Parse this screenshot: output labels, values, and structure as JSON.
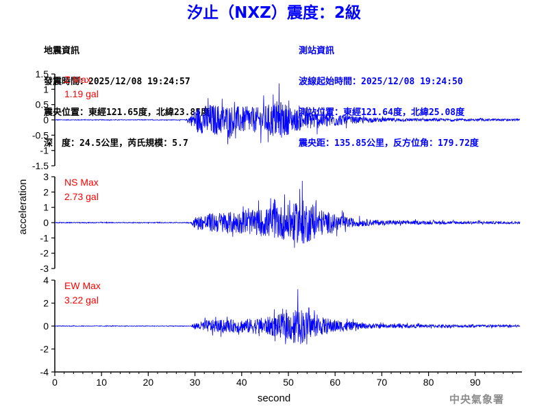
{
  "header": {
    "title": "汐止（NXZ）震度：2級"
  },
  "earthquake_info": {
    "heading": "地震資訊",
    "origin_time": "發震時間：2025/12/08 19:24:57",
    "epicenter": "震央位置：東經121.65度，北緯23.85度",
    "depth_magnitude": "深　度：24.5公里，芮氏規模：5.7"
  },
  "station_info": {
    "heading": "測站資訊",
    "wave_start_time": "波線起始時間：2025/12/08 19:24:50",
    "station_location": "測站位置：東經121.64度，北緯25.08度",
    "distance_azimuth": "震央距：135.85公里，反方位角：179.72度"
  },
  "footer": {
    "agency": "中央氣象署"
  },
  "colors": {
    "title": "#0000ff",
    "station_info": "#0000ff",
    "trace": "#0000ff",
    "max_label": "#ff0000",
    "axes": "#000000"
  },
  "chart_data": {
    "type": "line",
    "xlabel": "second",
    "ylabel": "acceleration",
    "xlim": [
      0,
      100
    ],
    "xticks": [
      0,
      10,
      20,
      30,
      40,
      50,
      60,
      70,
      80,
      90
    ],
    "grid": false,
    "panels": [
      {
        "component": "Z",
        "max_label": "Z Max",
        "max_value": "1.19 gal",
        "peak": 1.19,
        "ylim": [
          -1.5,
          1.5
        ],
        "yticks": [
          -1.5,
          -1,
          -0.5,
          0,
          0.5,
          1,
          1.5
        ],
        "ytick_labels": [
          "-1.5",
          "-1",
          "-0.5",
          "0",
          "0.5",
          "1",
          "1.5"
        ],
        "signal_envelope": [
          [
            0,
            0.02
          ],
          [
            28,
            0.02
          ],
          [
            29.5,
            0.4
          ],
          [
            30,
            0.7
          ],
          [
            33,
            0.95
          ],
          [
            36,
            0.9
          ],
          [
            40,
            0.8
          ],
          [
            44,
            0.75
          ],
          [
            48,
            1.19
          ],
          [
            51,
            0.7
          ],
          [
            55,
            0.55
          ],
          [
            60,
            0.4
          ],
          [
            64,
            0.2
          ],
          [
            70,
            0.12
          ],
          [
            80,
            0.08
          ],
          [
            100,
            0.06
          ]
        ]
      },
      {
        "component": "NS",
        "max_label": "NS Max",
        "max_value": "2.73 gal",
        "peak": 2.73,
        "ylim": [
          -3,
          3
        ],
        "yticks": [
          -3,
          -2,
          -1,
          0,
          1,
          2,
          3
        ],
        "ytick_labels": [
          "-3",
          "-2",
          "-1",
          "0",
          "1",
          "2",
          "3"
        ],
        "signal_envelope": [
          [
            0,
            0.05
          ],
          [
            29,
            0.05
          ],
          [
            30,
            0.7
          ],
          [
            33,
            1.1
          ],
          [
            36,
            1.3
          ],
          [
            40,
            1.3
          ],
          [
            44,
            1.6
          ],
          [
            48,
            2.0
          ],
          [
            51,
            2.2
          ],
          [
            53,
            2.73
          ],
          [
            56,
            1.8
          ],
          [
            60,
            1.0
          ],
          [
            64,
            0.5
          ],
          [
            70,
            0.3
          ],
          [
            80,
            0.2
          ],
          [
            100,
            0.15
          ]
        ]
      },
      {
        "component": "EW",
        "max_label": "EW Max",
        "max_value": "3.22 gal",
        "peak": 3.22,
        "ylim": [
          -4,
          4
        ],
        "yticks": [
          -4,
          -2,
          0,
          2,
          4
        ],
        "ytick_labels": [
          "-4",
          "-2",
          "0",
          "2",
          "4"
        ],
        "signal_envelope": [
          [
            0,
            0.05
          ],
          [
            29,
            0.05
          ],
          [
            30,
            0.5
          ],
          [
            33,
            1.0
          ],
          [
            37,
            1.0
          ],
          [
            42,
            1.2
          ],
          [
            46,
            1.5
          ],
          [
            50,
            2.2
          ],
          [
            52,
            3.22
          ],
          [
            55,
            1.8
          ],
          [
            58,
            1.3
          ],
          [
            62,
            0.8
          ],
          [
            66,
            0.45
          ],
          [
            70,
            0.35
          ],
          [
            80,
            0.25
          ],
          [
            100,
            0.2
          ]
        ]
      }
    ]
  }
}
